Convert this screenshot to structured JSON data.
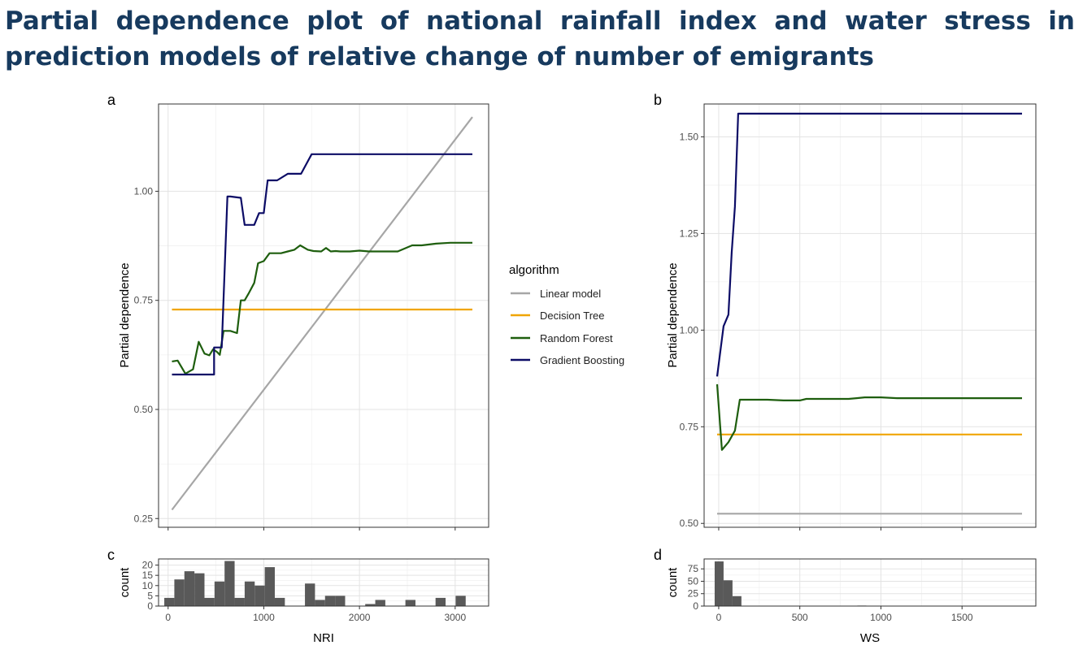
{
  "title": "Partial dependence plot of national rainfall index and water stress in prediction models of relative change of number of emigrants",
  "legend": {
    "title": "algorithm",
    "entries": [
      {
        "label": "Linear model",
        "color": "#a6a6a6"
      },
      {
        "label": "Decision Tree",
        "color": "#f0a500"
      },
      {
        "label": "Random Forest",
        "color": "#1e5e0e"
      },
      {
        "label": "Gradient Boosting",
        "color": "#0c0c66"
      }
    ]
  },
  "chart_data": [
    {
      "panel": "a",
      "type": "line",
      "xlabel": "",
      "ylabel": "Partial dependence",
      "xlim": [
        -100,
        3350
      ],
      "ylim": [
        0.23,
        1.2
      ],
      "grid": true,
      "x_ticks": [
        0,
        1000,
        2000,
        3000
      ],
      "x_ticklabels": [
        "",
        "",
        "",
        ""
      ],
      "y_ticks": [
        0.25,
        0.5,
        0.75,
        1.0
      ],
      "y_ticklabels": [
        "0.25",
        "0.50",
        "0.75",
        "1.00"
      ],
      "series": [
        {
          "name": "Linear model",
          "x": [
            40,
            3180
          ],
          "y": [
            0.27,
            1.17
          ]
        },
        {
          "name": "Decision Tree",
          "x": [
            40,
            3180
          ],
          "y": [
            0.729,
            0.729
          ]
        },
        {
          "name": "Random Forest",
          "x": [
            40,
            100,
            180,
            260,
            320,
            380,
            430,
            470,
            510,
            540,
            580,
            650,
            720,
            760,
            800,
            840,
            900,
            940,
            1000,
            1060,
            1100,
            1180,
            1250,
            1320,
            1380,
            1460,
            1520,
            1600,
            1650,
            1700,
            1750,
            1800,
            1850,
            1900,
            2000,
            2100,
            2200,
            2300,
            2400,
            2550,
            2650,
            2800,
            2950,
            3180
          ],
          "y": [
            0.61,
            0.612,
            0.582,
            0.592,
            0.655,
            0.628,
            0.624,
            0.638,
            0.632,
            0.625,
            0.68,
            0.68,
            0.675,
            0.75,
            0.75,
            0.765,
            0.79,
            0.835,
            0.84,
            0.858,
            0.858,
            0.858,
            0.862,
            0.866,
            0.876,
            0.866,
            0.863,
            0.862,
            0.87,
            0.862,
            0.863,
            0.862,
            0.862,
            0.862,
            0.864,
            0.862,
            0.862,
            0.862,
            0.862,
            0.876,
            0.876,
            0.88,
            0.882,
            0.882
          ]
        },
        {
          "name": "Gradient Boosting",
          "x": [
            40,
            480,
            480,
            560,
            620,
            650,
            760,
            800,
            900,
            950,
            1000,
            1040,
            1140,
            1250,
            1390,
            1500,
            1570,
            3180
          ],
          "y": [
            0.58,
            0.58,
            0.642,
            0.642,
            0.988,
            0.988,
            0.985,
            0.923,
            0.923,
            0.95,
            0.95,
            1.025,
            1.025,
            1.04,
            1.04,
            1.085,
            1.085,
            1.085
          ]
        }
      ]
    },
    {
      "panel": "b",
      "type": "line",
      "xlabel": "",
      "ylabel": "Partial dependence",
      "xlim": [
        -90,
        1955
      ],
      "ylim": [
        0.49,
        1.585
      ],
      "grid": true,
      "x_ticks": [
        0,
        500,
        1000,
        1500
      ],
      "x_ticklabels": [
        "",
        "",
        "",
        ""
      ],
      "y_ticks": [
        0.5,
        0.75,
        1.0,
        1.25,
        1.5
      ],
      "y_ticklabels": [
        "0.50",
        "0.75",
        "1.00",
        "1.25",
        "1.50"
      ],
      "series": [
        {
          "name": "Linear model",
          "x": [
            -10,
            1870
          ],
          "y": [
            0.525,
            0.525
          ]
        },
        {
          "name": "Decision Tree",
          "x": [
            -10,
            1870
          ],
          "y": [
            0.73,
            0.73
          ]
        },
        {
          "name": "Random Forest",
          "x": [
            -10,
            20,
            60,
            100,
            130,
            200,
            300,
            400,
            500,
            540,
            600,
            700,
            800,
            850,
            900,
            1000,
            1100,
            1200,
            1300,
            1400,
            1500,
            1600,
            1700,
            1870
          ],
          "y": [
            0.86,
            0.69,
            0.71,
            0.74,
            0.82,
            0.82,
            0.82,
            0.818,
            0.818,
            0.822,
            0.822,
            0.822,
            0.822,
            0.824,
            0.826,
            0.826,
            0.824,
            0.824,
            0.824,
            0.824,
            0.824,
            0.824,
            0.824,
            0.824
          ]
        },
        {
          "name": "Gradient Boosting",
          "x": [
            -10,
            30,
            60,
            80,
            100,
            120,
            140,
            200,
            600,
            1000,
            1400,
            1870
          ],
          "y": [
            0.88,
            1.01,
            1.04,
            1.2,
            1.32,
            1.56,
            1.56,
            1.56,
            1.56,
            1.56,
            1.56,
            1.56
          ]
        }
      ]
    },
    {
      "panel": "c",
      "type": "bar",
      "xlabel": "NRI",
      "ylabel": "count",
      "xlim": [
        -100,
        3350
      ],
      "ylim": [
        0,
        23
      ],
      "grid": true,
      "x_ticks": [
        0,
        1000,
        2000,
        3000
      ],
      "x_ticklabels": [
        "0",
        "1000",
        "2000",
        "3000"
      ],
      "y_ticks": [
        0,
        5,
        10,
        15,
        20
      ],
      "y_ticklabels": [
        "0",
        "5",
        "10",
        "15",
        "20"
      ],
      "bin_width": 105,
      "bin_starts": [
        -40,
        65,
        170,
        275,
        380,
        485,
        590,
        695,
        800,
        905,
        1010,
        1115,
        1430,
        1535,
        1640,
        1745,
        2060,
        2165,
        2480,
        2795,
        3005
      ],
      "counts": [
        4,
        13,
        17,
        16,
        4,
        12,
        22,
        4,
        12,
        10,
        19,
        4,
        11,
        3,
        5,
        5,
        1,
        3,
        3,
        4,
        5
      ]
    },
    {
      "panel": "d",
      "type": "bar",
      "xlabel": "WS",
      "ylabel": "count",
      "xlim": [
        -90,
        1955
      ],
      "ylim": [
        0,
        95
      ],
      "grid": true,
      "x_ticks": [
        0,
        500,
        1000,
        1500
      ],
      "x_ticklabels": [
        "0",
        "500",
        "1000",
        "1500"
      ],
      "y_ticks": [
        0,
        25,
        50,
        75
      ],
      "y_ticklabels": [
        "0",
        "25",
        "50",
        "75"
      ],
      "bin_width": 55,
      "bin_starts": [
        -25,
        30,
        85,
        855
      ],
      "counts": [
        90,
        52,
        20,
        1
      ]
    }
  ]
}
